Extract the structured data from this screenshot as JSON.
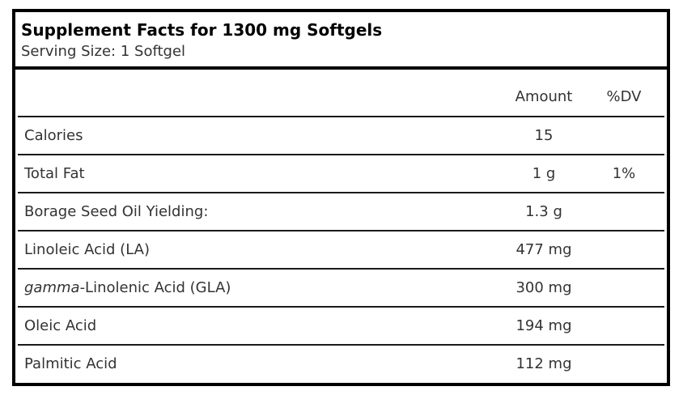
{
  "header": {
    "title": "Supplement Facts for 1300 mg Softgels",
    "serving_size": "Serving Size: 1 Softgel"
  },
  "table": {
    "headers": {
      "name": "",
      "amount": "Amount",
      "dv": "%DV"
    },
    "rows": [
      {
        "name": "Calories",
        "name_italic_prefix": "",
        "amount": "15",
        "dv": ""
      },
      {
        "name": "Total Fat",
        "name_italic_prefix": "",
        "amount": "1 g",
        "dv": "1%"
      },
      {
        "name": "Borage Seed Oil Yielding:",
        "name_italic_prefix": "",
        "amount": "1.3 g",
        "dv": ""
      },
      {
        "name": "Linoleic Acid (LA)",
        "name_italic_prefix": "",
        "amount": "477 mg",
        "dv": ""
      },
      {
        "name": "-Linolenic Acid (GLA)",
        "name_italic_prefix": "gamma",
        "amount": "300 mg",
        "dv": ""
      },
      {
        "name": "Oleic Acid",
        "name_italic_prefix": "",
        "amount": "194 mg",
        "dv": ""
      },
      {
        "name": "Palmitic Acid",
        "name_italic_prefix": "",
        "amount": "112 mg",
        "dv": ""
      }
    ]
  },
  "colors": {
    "border-color": "#000000",
    "rule-color": "#1a1a1a",
    "title-color": "#000000",
    "text-color": "#333333"
  }
}
